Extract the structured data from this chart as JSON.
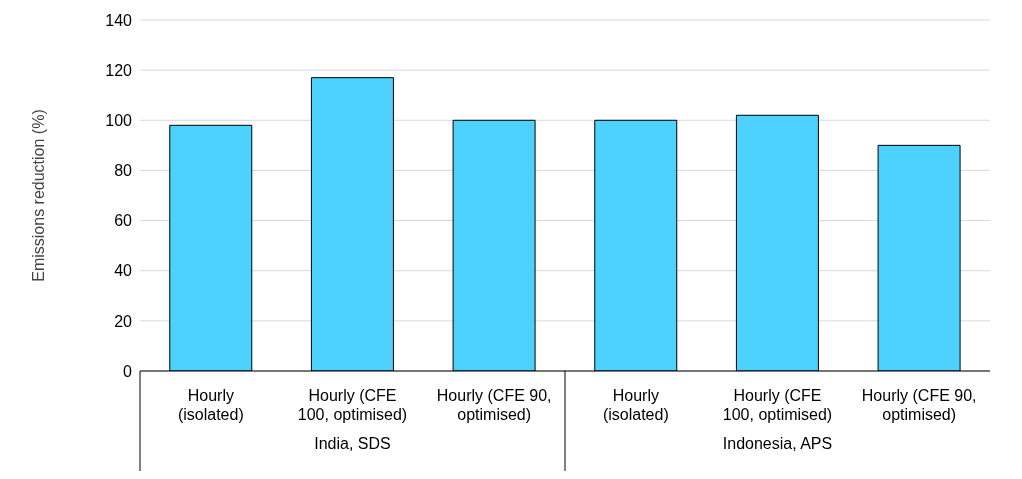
{
  "chart_data": {
    "type": "bar",
    "ylabel": "Emissions reduction (%)",
    "categories": [
      "Hourly (isolated)",
      "Hourly (CFE 100, optimised)",
      "Hourly (CFE 90, optimised)",
      "Hourly (isolated)",
      "Hourly (CFE 100, optimised)",
      "Hourly (CFE 90, optimised)"
    ],
    "values": [
      98,
      117,
      100,
      100,
      102,
      90
    ],
    "color": "#4dd2ff",
    "ylim": [
      0,
      140
    ],
    "yticks": [
      0,
      20,
      40,
      60,
      80,
      100,
      120,
      140
    ],
    "grid": "y",
    "annotations": [
      "India, SDS",
      "Indonesia, APS"
    ]
  }
}
